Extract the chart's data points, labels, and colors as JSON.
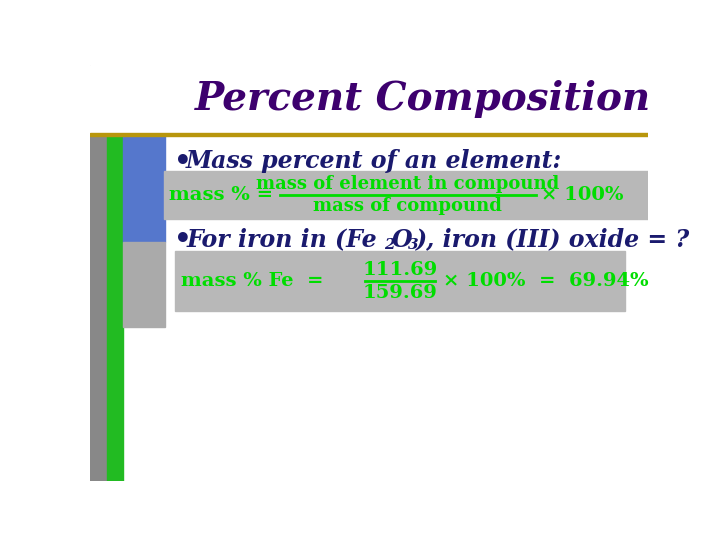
{
  "title": "Percent Composition",
  "title_color": "#3d006e",
  "title_fontsize": 28,
  "bg_color": "#ffffff",
  "gold_line_color": "#b8960c",
  "formula_bg": "#b8b8b8",
  "green_color": "#00dd00",
  "dark_navy": "#1a1a6e",
  "bullet1": "Mass percent of an element:",
  "formula1_left": "mass % =",
  "formula1_num": "mass of element in compound",
  "formula1_den": "mass of compound",
  "formula1_right": "× 100%",
  "formula2_left": "mass % Fe  =",
  "formula2_num": "111.69",
  "formula2_den": "159.69",
  "formula2_right": "× 100%  =  69.94%",
  "gray_bar_color": "#888888",
  "blue_rect_color": "#5577cc",
  "green_rect_color": "#22bb22",
  "light_gray_rect": "#aaaaaa"
}
